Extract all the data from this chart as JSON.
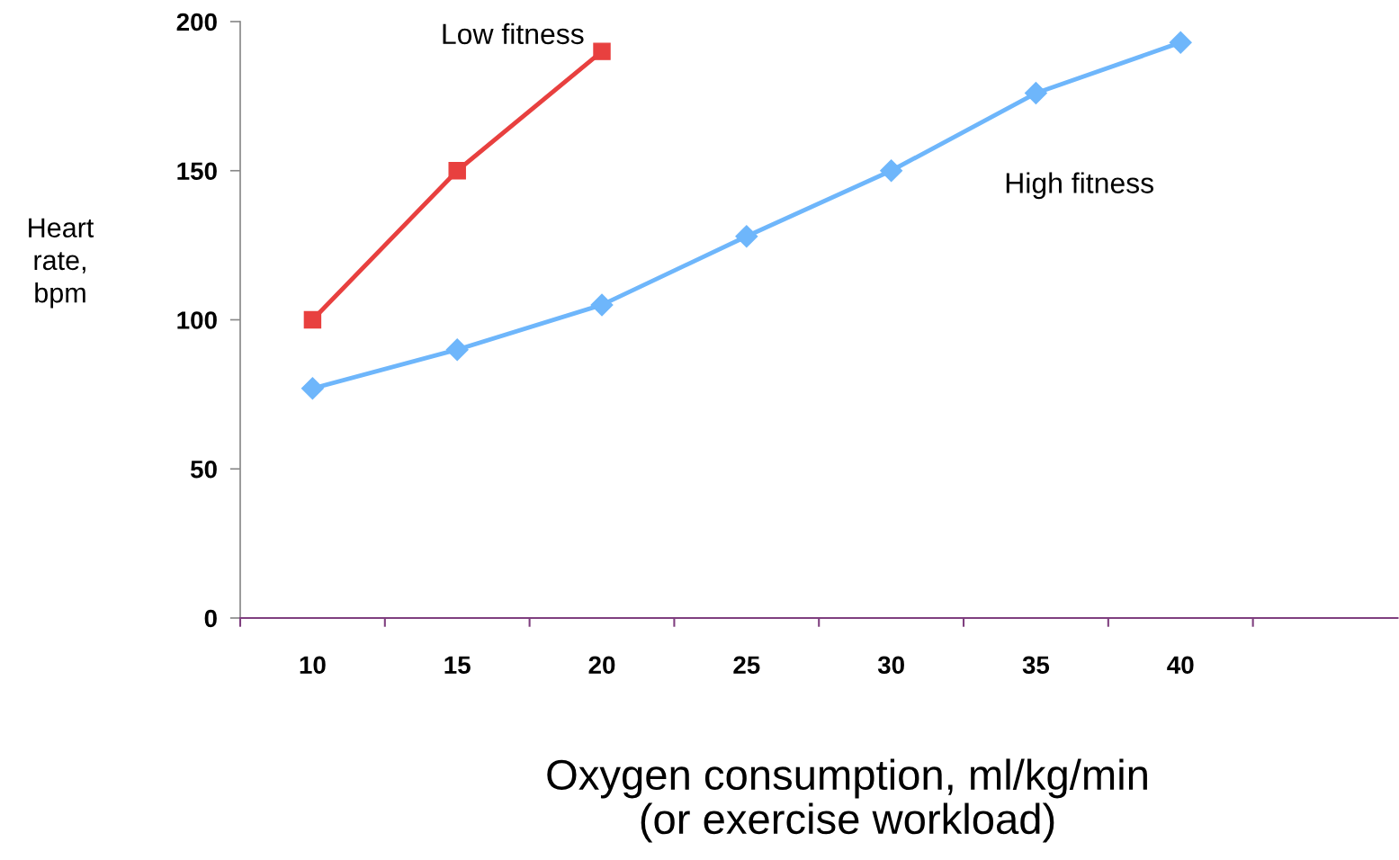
{
  "chart_data": {
    "type": "line",
    "xlabel": "Oxygen consumption, ml/kg/min\n(or exercise workload)",
    "ylabel": "Heart\nrate,\nbpm",
    "categories": [
      "10",
      "15",
      "20",
      "25",
      "30",
      "35",
      "40",
      null
    ],
    "series": [
      {
        "name": "Low fitness",
        "color": "#e8403f",
        "marker": "square",
        "values": [
          100,
          150,
          190,
          null,
          null,
          null,
          null,
          null
        ]
      },
      {
        "name": "High fitness",
        "color": "#6eb6fb",
        "marker": "diamond",
        "values": [
          77,
          90,
          105,
          128,
          150,
          176,
          193,
          null
        ]
      }
    ],
    "ylim": [
      0,
      200
    ],
    "yticks": [
      0,
      50,
      100,
      150,
      200
    ],
    "grid": false,
    "legend": false
  }
}
